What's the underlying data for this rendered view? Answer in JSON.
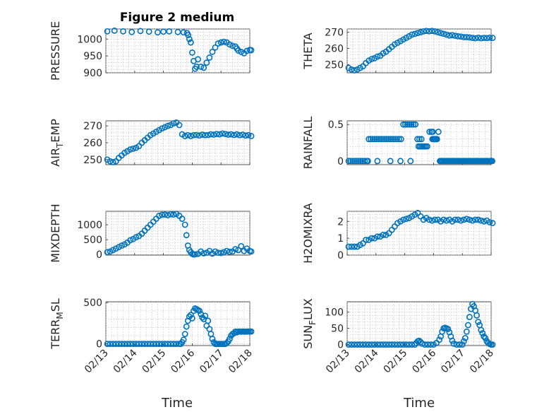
{
  "figure": {
    "title": "Figure 2 medium",
    "xlabel": "Time"
  },
  "colors": {
    "marker": "#0072BD",
    "axis": "#262626",
    "grid": "#b9b9b9"
  },
  "chart_data": [
    {
      "type": "scatter",
      "name": "pressure",
      "ylabel": "PRESSURE",
      "ylabel_sub": null,
      "ylim": [
        900,
        1030
      ],
      "yticks": [
        900,
        950,
        1000
      ],
      "ytick_labels": [
        "900",
        "950",
        "1000"
      ],
      "xlim": [
        0,
        5
      ],
      "xticks": [
        0,
        1,
        2,
        3,
        4,
        5
      ],
      "xtick_labels": [
        "02/13",
        "02/14",
        "02/15",
        "02/16",
        "02/17",
        "02/18"
      ],
      "show_xticklabels": false,
      "grid": true,
      "x": [
        0.05,
        0.3,
        0.6,
        0.9,
        1.2,
        1.5,
        1.8,
        2.0,
        2.2,
        2.5,
        2.7,
        2.82,
        2.86,
        2.9,
        2.95,
        3.0,
        3.05,
        3.1,
        3.15,
        3.2,
        3.3,
        3.4,
        3.5,
        3.6,
        3.7,
        3.8,
        3.9,
        4.0,
        4.1,
        4.2,
        4.3,
        4.4,
        4.5,
        4.55,
        4.6,
        4.7,
        4.8,
        4.9,
        5.0,
        5.05
      ],
      "y": [
        1023,
        1025,
        1023,
        1021,
        1024,
        1022,
        1020,
        1022,
        1023,
        1021,
        1020,
        1018,
        1012,
        1000,
        990,
        960,
        935,
        912,
        918,
        940,
        918,
        915,
        930,
        945,
        962,
        975,
        987,
        990,
        992,
        990,
        984,
        980,
        978,
        972,
        966,
        962,
        958,
        965,
        968,
        967
      ]
    },
    {
      "type": "scatter",
      "name": "theta",
      "ylabel": "THETA",
      "ylabel_sub": null,
      "ylim": [
        245,
        272
      ],
      "yticks": [
        250,
        260,
        270
      ],
      "ytick_labels": [
        "250",
        "260",
        "270"
      ],
      "xlim": [
        0,
        5
      ],
      "xticks": [
        0,
        1,
        2,
        3,
        4,
        5
      ],
      "xtick_labels": [
        "02/13",
        "02/14",
        "02/15",
        "02/16",
        "02/17",
        "02/18"
      ],
      "show_xticklabels": false,
      "grid": true,
      "x": [
        0.05,
        0.15,
        0.25,
        0.35,
        0.45,
        0.55,
        0.65,
        0.75,
        0.85,
        0.95,
        1.05,
        1.15,
        1.25,
        1.35,
        1.45,
        1.55,
        1.65,
        1.75,
        1.85,
        1.95,
        2.05,
        2.15,
        2.25,
        2.35,
        2.45,
        2.55,
        2.65,
        2.75,
        2.85,
        2.95,
        3.05,
        3.15,
        3.25,
        3.35,
        3.45,
        3.55,
        3.65,
        3.75,
        3.85,
        3.95,
        4.05,
        4.15,
        4.25,
        4.35,
        4.45,
        4.55,
        4.65,
        4.75,
        4.85,
        4.95,
        5.05
      ],
      "y": [
        248,
        247,
        246.5,
        247,
        248,
        249,
        251,
        252.5,
        253.5,
        254,
        255,
        255.5,
        257,
        258,
        259.5,
        261,
        262.5,
        263.5,
        264.5,
        265.5,
        266.5,
        267.5,
        268.5,
        269,
        269.5,
        270,
        270.5,
        270.8,
        270.6,
        270.8,
        270.5,
        270,
        269.5,
        269,
        268.5,
        268,
        268.2,
        267.8,
        267.5,
        267.3,
        267,
        267,
        266.8,
        266.5,
        266.3,
        266.6,
        266.3,
        266.5,
        266.4,
        266.6,
        266.5
      ]
    },
    {
      "type": "scatter",
      "name": "air-temp",
      "ylabel": "AIR",
      "ylabel_sub": "T",
      "ylabel_tail": "EMP",
      "ylim": [
        247,
        273
      ],
      "yticks": [
        250,
        260,
        270
      ],
      "ytick_labels": [
        "250",
        "260",
        "270"
      ],
      "xlim": [
        0,
        5
      ],
      "xticks": [
        0,
        1,
        2,
        3,
        4,
        5
      ],
      "xtick_labels": [
        "02/13",
        "02/14",
        "02/15",
        "02/16",
        "02/17",
        "02/18"
      ],
      "show_xticklabels": false,
      "grid": true,
      "x": [
        0.05,
        0.15,
        0.25,
        0.35,
        0.45,
        0.55,
        0.65,
        0.75,
        0.85,
        0.95,
        1.05,
        1.15,
        1.25,
        1.35,
        1.45,
        1.55,
        1.65,
        1.75,
        1.85,
        1.95,
        2.05,
        2.15,
        2.25,
        2.35,
        2.45,
        2.55,
        2.65,
        2.75,
        2.85,
        2.95,
        3.05,
        3.15,
        3.25,
        3.35,
        3.45,
        3.55,
        3.65,
        3.75,
        3.85,
        3.95,
        4.05,
        4.15,
        4.25,
        4.35,
        4.45,
        4.55,
        4.65,
        4.75,
        4.85,
        4.95,
        5.05
      ],
      "y": [
        250,
        249,
        248.5,
        249,
        251,
        252.5,
        254,
        255,
        256,
        256.5,
        257,
        258,
        260,
        261.5,
        263,
        264.5,
        265.5,
        266.5,
        267.5,
        268.5,
        269.2,
        270,
        270.5,
        271.5,
        272,
        270.5,
        265,
        264,
        264.5,
        264,
        264.5,
        264.6,
        264.3,
        264.8,
        264.5,
        264.6,
        265,
        264.8,
        265.2,
        265,
        265.5,
        265.2,
        264.8,
        265,
        264.6,
        265,
        264.5,
        264.8,
        264.3,
        264.5,
        264
      ]
    },
    {
      "type": "scatter",
      "name": "rainfall",
      "ylabel": "RAINFALL",
      "ylabel_sub": null,
      "ylim": [
        -0.05,
        0.55
      ],
      "yticks": [
        0,
        0.5
      ],
      "ytick_labels": [
        "0",
        "0.5"
      ],
      "xlim": [
        0,
        5
      ],
      "xticks": [
        0,
        1,
        2,
        3,
        4,
        5
      ],
      "xtick_labels": [
        "02/13",
        "02/14",
        "02/15",
        "02/16",
        "02/17",
        "02/18"
      ],
      "show_xticklabels": false,
      "grid": true,
      "x": [
        0.05,
        0.12,
        0.19,
        0.26,
        0.33,
        0.4,
        0.47,
        0.54,
        0.61,
        0.68,
        0.72,
        1.05,
        1.5,
        1.85,
        2.2,
        0.75,
        0.82,
        0.89,
        0.96,
        1.03,
        1.1,
        1.17,
        1.24,
        1.31,
        1.38,
        1.45,
        1.52,
        1.59,
        1.66,
        1.73,
        1.8,
        1.87,
        1.95,
        2.02,
        2.09,
        2.16,
        2.23,
        2.3,
        2.37,
        2.44,
        2.51,
        2.58,
        2.48,
        2.53,
        2.58,
        2.63,
        2.68,
        2.73,
        2.78,
        2.86,
        2.93,
        2.97,
        3.02,
        3.07,
        3.12,
        3.17,
        2.96,
        2.99,
        3.02,
        3.05,
        3.08,
        3.11,
        3.22,
        3.25,
        3.28,
        3.32,
        3.36,
        3.4,
        3.44,
        3.48,
        3.52,
        3.56,
        3.6,
        3.64,
        3.68,
        3.72,
        3.76,
        3.8,
        3.84,
        3.88,
        3.92,
        3.96,
        4.0,
        4.04,
        4.08,
        4.12,
        4.16,
        4.2,
        4.24,
        4.28,
        4.32,
        4.36,
        4.4,
        4.44,
        4.48,
        4.52,
        4.56,
        4.6,
        4.64,
        4.68,
        4.72,
        4.76,
        4.8,
        4.84,
        4.88,
        4.92,
        4.96,
        5.0,
        5.04
      ],
      "y": [
        0,
        0,
        0,
        0,
        0,
        0,
        0,
        0,
        0,
        0,
        0,
        0,
        0,
        0,
        0,
        0.3,
        0.3,
        0.3,
        0.3,
        0.3,
        0.3,
        0.3,
        0.3,
        0.3,
        0.3,
        0.3,
        0.3,
        0.3,
        0.3,
        0.3,
        0.3,
        0.3,
        0.5,
        0.5,
        0.5,
        0.5,
        0.5,
        0.5,
        0.5,
        0.3,
        0.3,
        0.3,
        0.2,
        0.2,
        0.2,
        0.2,
        0.2,
        0.2,
        0.2,
        0.4,
        0.4,
        0.4,
        0.3,
        0.3,
        0.3,
        0.4,
        0.3,
        0.3,
        0.3,
        0.3,
        0.3,
        0.3,
        0,
        0,
        0,
        0,
        0,
        0,
        0,
        0,
        0,
        0,
        0,
        0,
        0,
        0,
        0,
        0,
        0,
        0,
        0,
        0,
        0,
        0,
        0,
        0,
        0,
        0,
        0,
        0,
        0,
        0,
        0,
        0,
        0,
        0,
        0,
        0,
        0,
        0,
        0,
        0,
        0,
        0,
        0,
        0,
        0,
        0,
        0
      ]
    },
    {
      "type": "scatter",
      "name": "mixdepth",
      "ylabel": "MIXDEPTH",
      "ylabel_sub": null,
      "ylim": [
        -20,
        1450
      ],
      "yticks": [
        0,
        500,
        1000
      ],
      "ytick_labels": [
        "0",
        "500",
        "1000"
      ],
      "xlim": [
        0,
        5
      ],
      "xticks": [
        0,
        1,
        2,
        3,
        4,
        5
      ],
      "xtick_labels": [
        "02/13",
        "02/14",
        "02/15",
        "02/16",
        "02/17",
        "02/18"
      ],
      "show_xticklabels": false,
      "grid": true,
      "x": [
        0.05,
        0.15,
        0.25,
        0.35,
        0.45,
        0.55,
        0.65,
        0.75,
        0.85,
        0.95,
        1.05,
        1.15,
        1.25,
        1.35,
        1.45,
        1.55,
        1.65,
        1.75,
        1.85,
        1.95,
        2.05,
        2.15,
        2.25,
        2.35,
        2.45,
        2.55,
        2.65,
        2.75,
        2.8,
        2.85,
        2.9,
        2.95,
        3.0,
        3.05,
        3.1,
        3.2,
        3.3,
        3.4,
        3.5,
        3.6,
        3.7,
        3.8,
        3.9,
        4.0,
        4.1,
        4.2,
        4.3,
        4.4,
        4.5,
        4.6,
        4.7,
        4.8,
        4.9,
        5.0,
        5.05
      ],
      "y": [
        80,
        100,
        150,
        200,
        250,
        300,
        340,
        400,
        480,
        520,
        580,
        620,
        700,
        800,
        900,
        1000,
        1100,
        1200,
        1300,
        1330,
        1340,
        1320,
        1350,
        1340,
        1360,
        1300,
        1200,
        1000,
        650,
        300,
        150,
        80,
        20,
        0,
        5,
        20,
        100,
        40,
        60,
        120,
        30,
        100,
        60,
        50,
        80,
        120,
        90,
        100,
        180,
        150,
        280,
        120,
        200,
        120,
        100
      ]
    },
    {
      "type": "scatter",
      "name": "h2o-mixratio",
      "ylabel": "H2OMIXRA",
      "ylabel_sub": null,
      "ylim": [
        0,
        2.6
      ],
      "yticks": [
        0,
        1,
        2
      ],
      "ytick_labels": [
        "0",
        "1",
        "2"
      ],
      "xlim": [
        0,
        5
      ],
      "xticks": [
        0,
        1,
        2,
        3,
        4,
        5
      ],
      "xtick_labels": [
        "02/13",
        "02/14",
        "02/15",
        "02/16",
        "02/17",
        "02/18"
      ],
      "show_xticklabels": false,
      "grid": true,
      "x": [
        0.05,
        0.15,
        0.25,
        0.35,
        0.45,
        0.55,
        0.65,
        0.75,
        0.85,
        0.95,
        1.05,
        1.15,
        1.25,
        1.35,
        1.45,
        1.55,
        1.65,
        1.75,
        1.85,
        1.95,
        2.05,
        2.15,
        2.25,
        2.35,
        2.45,
        2.55,
        2.65,
        2.75,
        2.85,
        2.95,
        3.05,
        3.15,
        3.25,
        3.35,
        3.45,
        3.55,
        3.65,
        3.75,
        3.85,
        3.95,
        4.05,
        4.15,
        4.25,
        4.35,
        4.45,
        4.55,
        4.65,
        4.75,
        4.85,
        4.95,
        5.05
      ],
      "y": [
        0.5,
        0.5,
        0.5,
        0.5,
        0.6,
        0.7,
        0.9,
        0.9,
        1.0,
        1.0,
        1.1,
        1.1,
        1.2,
        1.2,
        1.3,
        1.5,
        1.7,
        1.9,
        2.0,
        2.1,
        2.15,
        2.2,
        2.3,
        2.4,
        2.5,
        2.3,
        2.1,
        2.2,
        2.1,
        2.05,
        2.1,
        2.1,
        2.0,
        2.1,
        2.05,
        2.1,
        2.0,
        2.1,
        2.1,
        2.05,
        2.1,
        2.15,
        2.1,
        2.05,
        2.1,
        2.1,
        2.05,
        2.0,
        2.05,
        1.95,
        1.9
      ]
    },
    {
      "type": "scatter",
      "name": "terr-msl",
      "ylabel": "TERR",
      "ylabel_sub": "M",
      "ylabel_tail": "SL",
      "ylim": [
        -20,
        510
      ],
      "yticks": [
        0,
        500
      ],
      "ytick_labels": [
        "0",
        "500"
      ],
      "xlim": [
        0,
        5
      ],
      "xticks": [
        0,
        1,
        2,
        3,
        4,
        5
      ],
      "xtick_labels": [
        "02/13",
        "02/14",
        "02/15",
        "02/16",
        "02/17",
        "02/18"
      ],
      "show_xticklabels": true,
      "grid": true,
      "x": [
        0.05,
        0.15,
        0.25,
        0.35,
        0.45,
        0.55,
        0.65,
        0.75,
        0.85,
        0.95,
        1.05,
        1.15,
        1.25,
        1.35,
        1.45,
        1.55,
        1.65,
        1.75,
        1.85,
        1.95,
        2.05,
        2.15,
        2.25,
        2.35,
        2.45,
        2.55,
        2.6,
        2.65,
        2.7,
        2.75,
        2.8,
        2.85,
        2.9,
        2.95,
        3.0,
        3.05,
        3.1,
        3.15,
        3.2,
        3.25,
        3.3,
        3.35,
        3.4,
        3.45,
        3.5,
        3.55,
        3.6,
        3.65,
        3.7,
        3.75,
        3.8,
        3.85,
        3.9,
        3.95,
        4.0,
        4.05,
        4.1,
        4.15,
        4.2,
        4.25,
        4.3,
        4.35,
        4.4,
        4.45,
        4.5,
        4.55,
        4.6,
        4.65,
        4.7,
        4.75,
        4.8,
        4.85,
        4.9,
        4.95,
        5.0,
        5.05
      ],
      "y": [
        0,
        0,
        0,
        0,
        0,
        0,
        0,
        0,
        0,
        0,
        0,
        0,
        0,
        0,
        0,
        0,
        0,
        0,
        0,
        0,
        0,
        0,
        0,
        0,
        0,
        0,
        0,
        20,
        50,
        120,
        210,
        280,
        330,
        350,
        310,
        400,
        430,
        420,
        410,
        400,
        360,
        320,
        300,
        340,
        220,
        280,
        180,
        120,
        60,
        20,
        0,
        0,
        0,
        0,
        0,
        0,
        0,
        0,
        10,
        30,
        60,
        100,
        120,
        130,
        150,
        140,
        150,
        150,
        148,
        150,
        150,
        148,
        150,
        150,
        150,
        150
      ]
    },
    {
      "type": "scatter",
      "name": "sun-flux",
      "ylabel": "SUN",
      "ylabel_sub": "F",
      "ylabel_tail": "LUX",
      "ylim": [
        -3,
        132
      ],
      "yticks": [
        0,
        50,
        100
      ],
      "ytick_labels": [
        "0",
        "50",
        "100"
      ],
      "xlim": [
        0,
        5
      ],
      "xticks": [
        0,
        1,
        2,
        3,
        4,
        5
      ],
      "xtick_labels": [
        "02/13",
        "02/14",
        "02/15",
        "02/16",
        "02/17",
        "02/18"
      ],
      "show_xticklabels": true,
      "grid": true,
      "x": [
        0.05,
        0.15,
        0.25,
        0.35,
        0.45,
        0.55,
        0.65,
        0.75,
        0.85,
        0.95,
        1.05,
        1.15,
        1.25,
        1.35,
        1.45,
        1.55,
        1.65,
        1.75,
        1.85,
        1.95,
        2.05,
        2.15,
        2.25,
        2.35,
        2.4,
        2.45,
        2.5,
        2.55,
        2.6,
        2.7,
        2.8,
        2.9,
        3.0,
        3.1,
        3.2,
        3.25,
        3.3,
        3.35,
        3.4,
        3.45,
        3.5,
        3.55,
        3.6,
        3.65,
        3.7,
        3.8,
        3.9,
        4.0,
        4.05,
        4.1,
        4.15,
        4.2,
        4.25,
        4.3,
        4.35,
        4.4,
        4.45,
        4.5,
        4.55,
        4.6,
        4.65,
        4.7,
        4.75,
        4.8,
        4.85,
        4.9,
        4.95,
        5.0,
        5.05
      ],
      "y": [
        0,
        0,
        0,
        0,
        0,
        0,
        0,
        0,
        0,
        0,
        0,
        0,
        0,
        0,
        0,
        0,
        0,
        0,
        0,
        0,
        0,
        0,
        0,
        0,
        5,
        10,
        12,
        8,
        3,
        0,
        0,
        0,
        0,
        5,
        15,
        25,
        40,
        50,
        52,
        50,
        48,
        38,
        25,
        12,
        3,
        0,
        0,
        0,
        10,
        20,
        40,
        60,
        85,
        110,
        125,
        118,
        105,
        90,
        70,
        60,
        45,
        35,
        25,
        20,
        10,
        5,
        2,
        0,
        0
      ]
    }
  ]
}
